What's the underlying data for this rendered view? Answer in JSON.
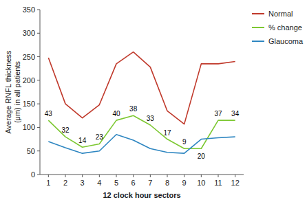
{
  "chart_data": {
    "type": "line",
    "x": [
      1,
      2,
      3,
      4,
      5,
      6,
      7,
      8,
      9,
      10,
      11,
      12
    ],
    "xlim": [
      0.5,
      12.5
    ],
    "xticks": [
      1,
      2,
      3,
      4,
      5,
      6,
      7,
      8,
      9,
      10,
      11,
      12
    ],
    "ylim": [
      0,
      350
    ],
    "yticks": [
      0,
      50,
      100,
      150,
      200,
      250,
      300,
      350
    ],
    "xlabel": "12 clock hour sectors",
    "ylabel": "Average RNFL thickness\n(μm) in all patients",
    "legend": "right",
    "series": [
      {
        "name": "Normal",
        "color": "#c0392b",
        "values": [
          248,
          150,
          120,
          148,
          235,
          260,
          228,
          135,
          107,
          235,
          235,
          240
        ]
      },
      {
        "name": "% change",
        "color": "#7dc832",
        "values": [
          115,
          80,
          58,
          65,
          115,
          125,
          105,
          75,
          55,
          55,
          115,
          115
        ]
      },
      {
        "name": "Glaucoma",
        "color": "#2e86c1",
        "values": [
          70,
          57,
          45,
          50,
          85,
          73,
          55,
          47,
          45,
          75,
          78,
          80
        ]
      }
    ],
    "annotations": [
      "43",
      "32",
      "14",
      "23",
      "40",
      "38",
      "33",
      "17",
      "9",
      "20",
      "37",
      "34"
    ]
  }
}
